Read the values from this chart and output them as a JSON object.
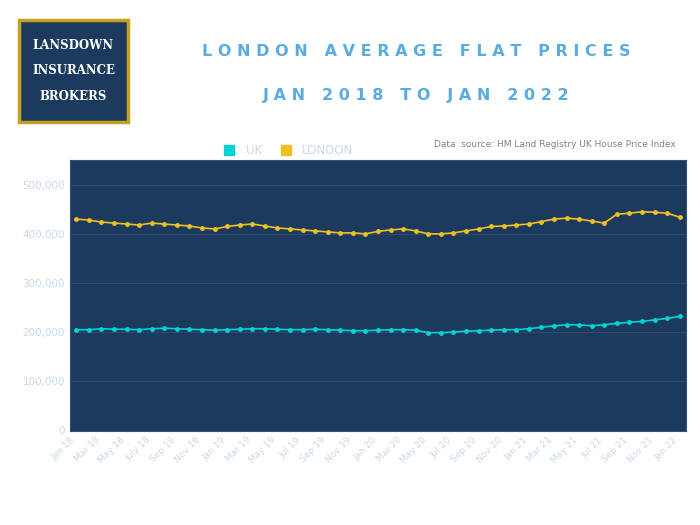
{
  "title_line1": "L O N D O N   A V E R A G E   F L A T   P R I C E S",
  "title_line2": "J A N   2 0 1 8   T O   J A N   2 0 2 2",
  "source_text": "Data  source: HM Land Registry UK House Price Index",
  "logo_text_line1": "LANSDOWN",
  "logo_text_line2": "INSURANCE",
  "logo_text_line3": "BROKERS",
  "plot_bg_color": "#1c3a5e",
  "title_color": "#5aace0",
  "tick_label_color": "#c8d8e8",
  "grid_color": "#2e507a",
  "uk_color": "#00d4d4",
  "london_color": "#f0c020",
  "x_labels": [
    "Jan 18",
    "Mar 18",
    "May 18",
    "July 18",
    "Sep 18",
    "Nov 18",
    "Jan 19",
    "Mar 19",
    "May 19",
    "Jul 19",
    "Sep 19",
    "Nov 19",
    "Jan 20",
    "Mar 20",
    "May 20",
    "Jul 20",
    "Sep 20",
    "Nov 20",
    "Jan 21",
    "Mar 21",
    "May 21",
    "Jul 21",
    "Sep 21",
    "Nov 21",
    "Jan 22"
  ],
  "uk_values": [
    205000,
    205000,
    207000,
    206000,
    206000,
    205000,
    207000,
    208000,
    207000,
    206000,
    205000,
    204000,
    205000,
    206000,
    207000,
    207000,
    206000,
    205000,
    205000,
    206000,
    205000,
    204000,
    203000,
    203000,
    204000,
    205000,
    205000,
    204000,
    199000,
    199000,
    200000,
    202000,
    203000,
    204000,
    205000,
    205000,
    207000,
    210000,
    213000,
    215000,
    215000,
    213000,
    215000,
    218000,
    220000,
    222000,
    225000,
    228000,
    232000
  ],
  "london_values": [
    430000,
    428000,
    424000,
    422000,
    420000,
    418000,
    422000,
    420000,
    418000,
    416000,
    412000,
    410000,
    415000,
    418000,
    420000,
    416000,
    412000,
    410000,
    408000,
    406000,
    404000,
    402000,
    402000,
    400000,
    405000,
    408000,
    410000,
    406000,
    400000,
    400000,
    402000,
    406000,
    410000,
    415000,
    416000,
    418000,
    420000,
    425000,
    430000,
    432000,
    430000,
    426000,
    422000,
    440000,
    442000,
    445000,
    444000,
    442000,
    434000
  ],
  "ylim": [
    0,
    550000
  ],
  "yticks": [
    0,
    100000,
    200000,
    300000,
    400000,
    500000
  ],
  "ytick_labels": [
    "0",
    "100,000",
    "200,000",
    "300,000",
    "400,000",
    "500,000"
  ]
}
